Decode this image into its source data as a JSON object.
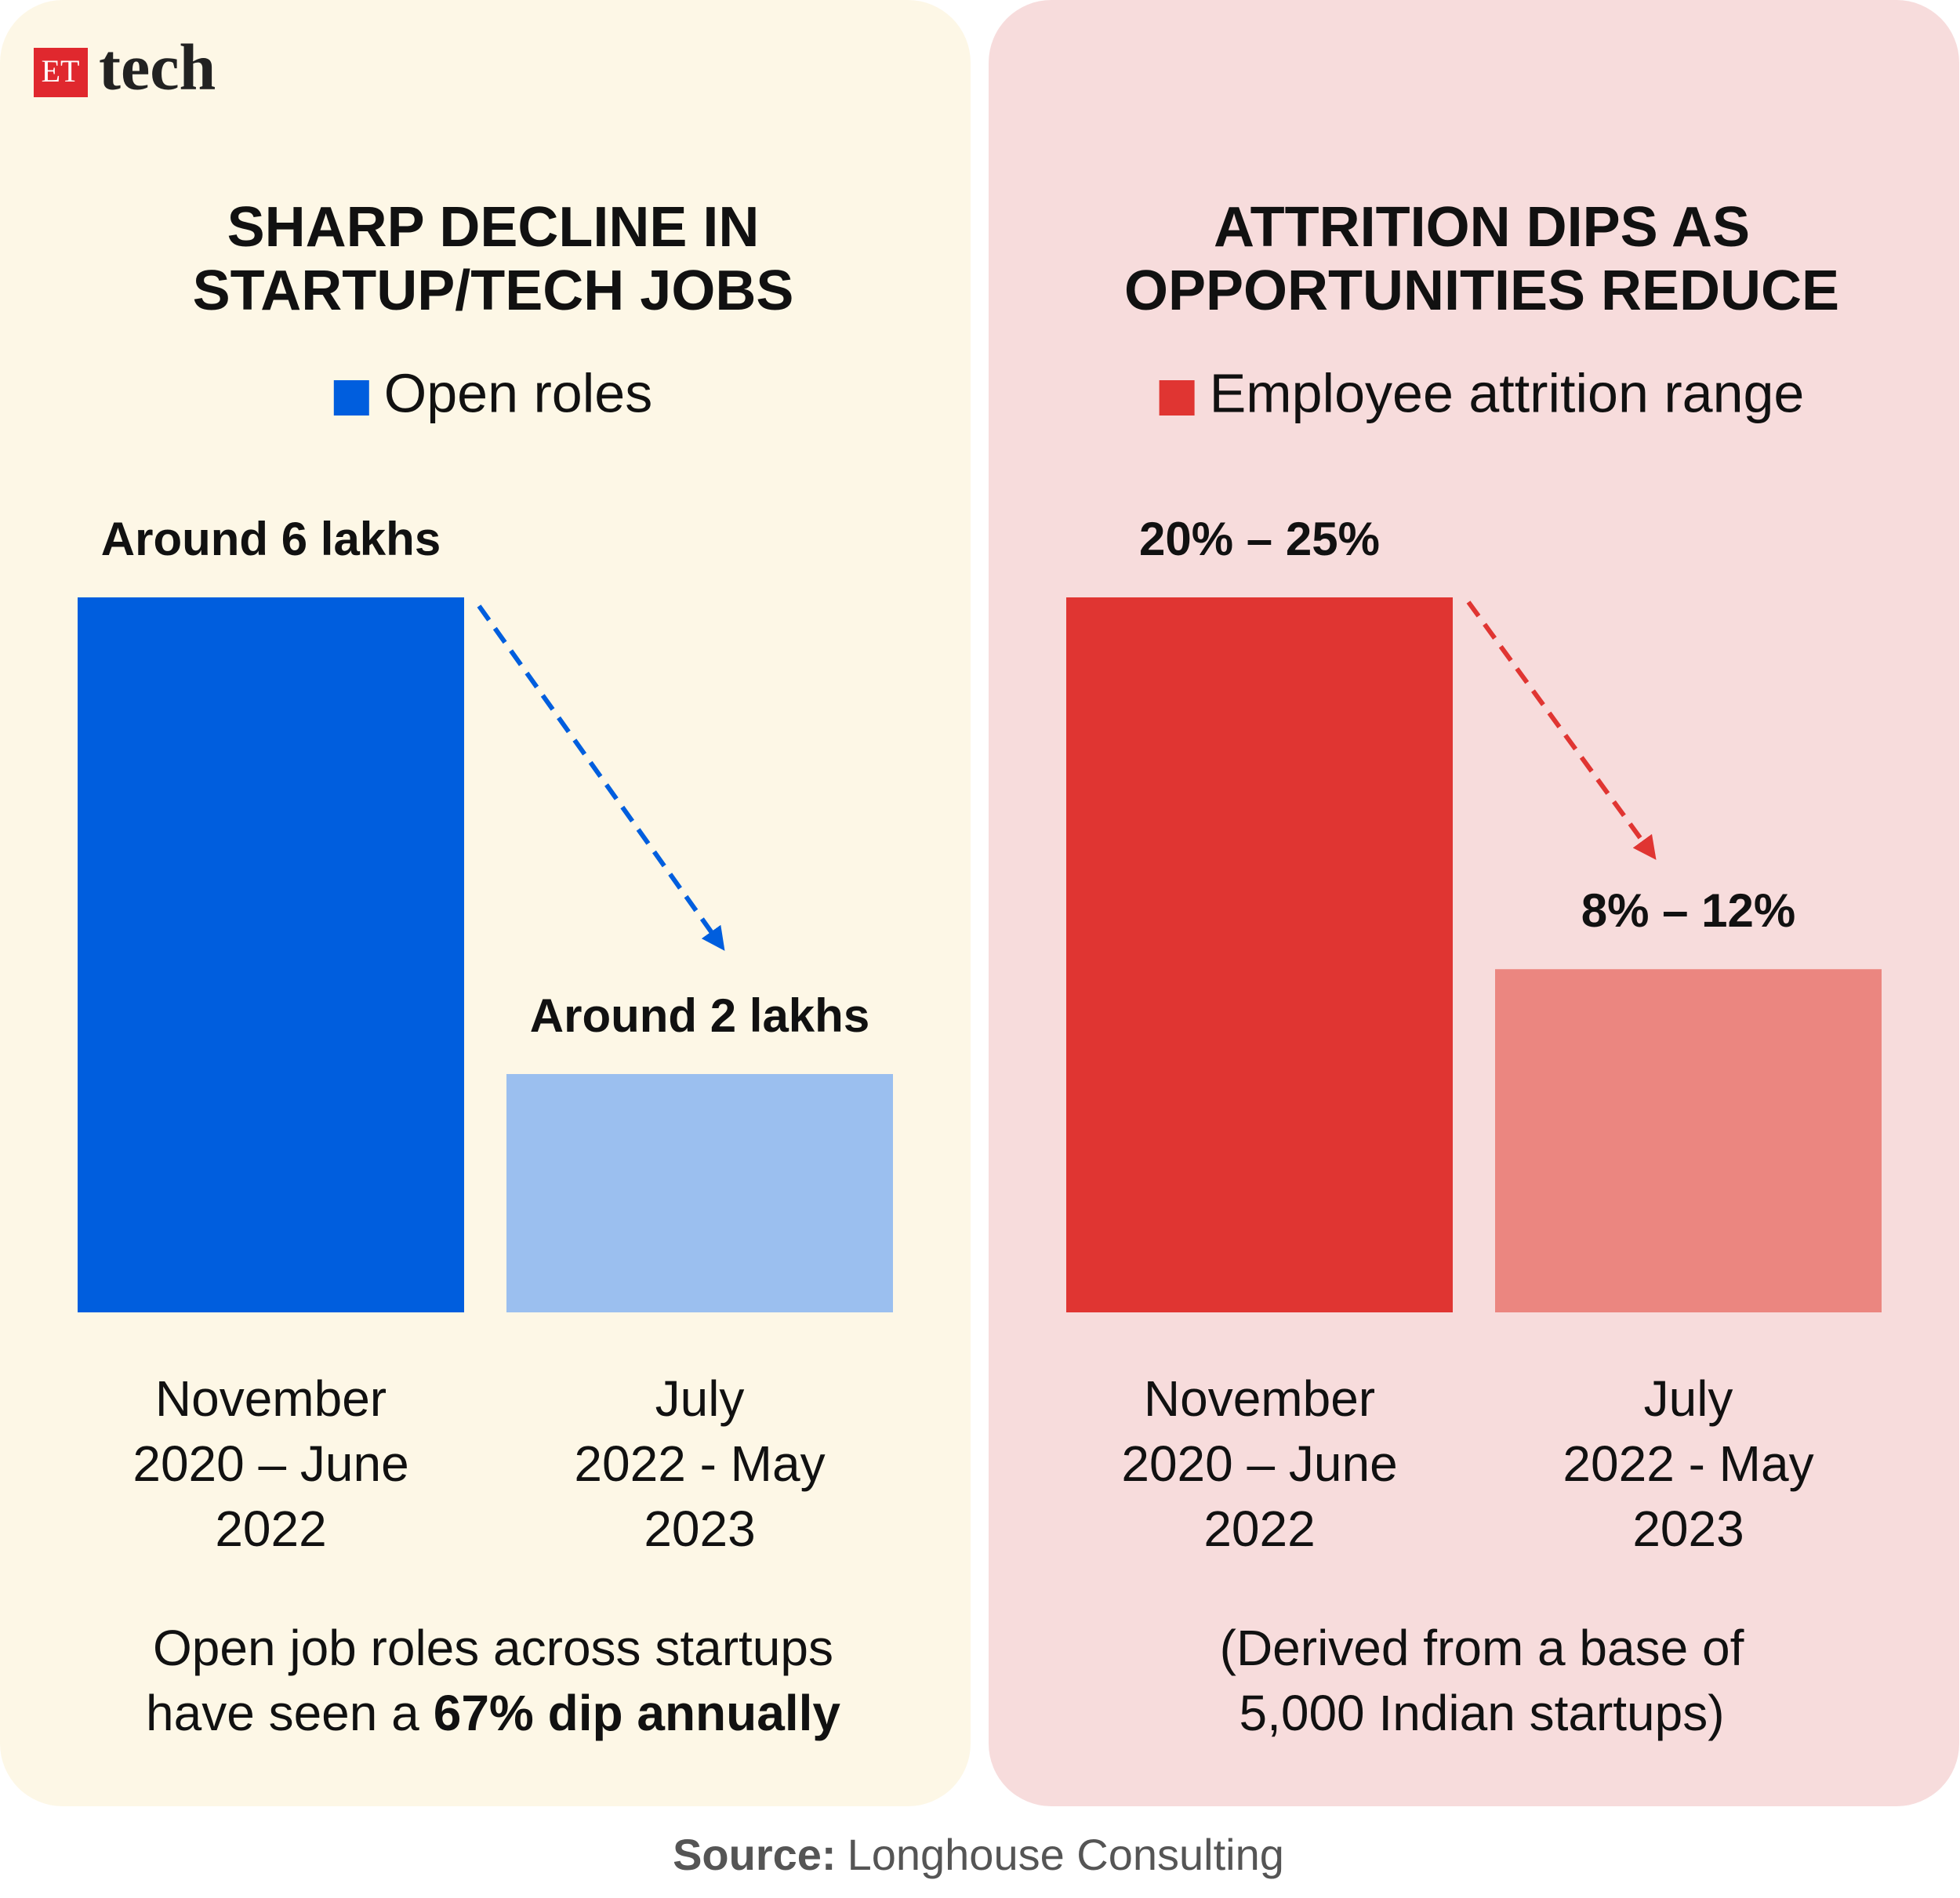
{
  "logo": {
    "badge": "ET",
    "text": "tech"
  },
  "chart_data": [
    {
      "type": "bar",
      "title": [
        "SHARP DECLINE IN",
        "STARTUP/TECH JOBS"
      ],
      "background": "#fdf7e6",
      "categories": [
        [
          "November",
          "2020 – June",
          "2022"
        ],
        [
          "July",
          "2022 - May",
          "2023"
        ]
      ],
      "series": [
        {
          "name": "Open roles",
          "color": "#005ede",
          "colors": [
            "#005ede",
            "#9bbfef"
          ],
          "values": [
            6,
            2
          ],
          "value_labels": [
            "Around 6 lakhs",
            "Around 2 lakhs"
          ]
        }
      ],
      "annotation": [
        {
          "text": "Open job roles across startups"
        },
        {
          "text": "have seen a",
          "emphasis": "67% dip annually"
        }
      ]
    },
    {
      "type": "bar",
      "title": [
        "ATTRITION DIPS AS",
        "OPPORTUNITIES REDUCE"
      ],
      "background": "#f7dcdc",
      "categories": [
        [
          "November",
          "2020 – June",
          "2022"
        ],
        [
          "July",
          "2022 - May",
          "2023"
        ]
      ],
      "series": [
        {
          "name": "Employee attrition range",
          "color": "#e03532",
          "colors": [
            "#e03532",
            "#eb8680"
          ],
          "values": [
            25,
            12
          ],
          "value_labels": [
            "20% – 25%",
            "8% – 12%"
          ]
        }
      ],
      "annotation": [
        {
          "text": "(Derived from a base of"
        },
        {
          "text": "5,000 Indian startups)"
        }
      ]
    }
  ],
  "source": {
    "label": "Source:",
    "text": "Longhouse Consulting"
  }
}
